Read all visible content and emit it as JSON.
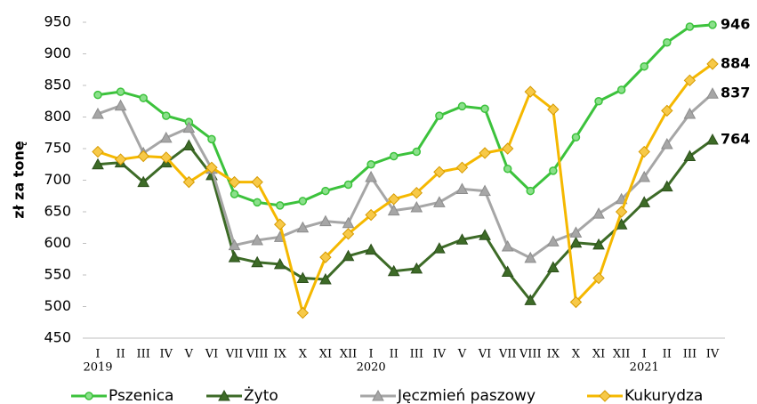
{
  "chart_data": {
    "type": "line",
    "y_label": "zł za tonę",
    "categories": [
      "I",
      "II",
      "III",
      "IV",
      "V",
      "VI",
      "VII",
      "VIII",
      "IX",
      "X",
      "XI",
      "XII",
      "I",
      "II",
      "III",
      "IV",
      "V",
      "VI",
      "VII",
      "VIII",
      "IX",
      "X",
      "XI",
      "XII",
      "I",
      "II",
      "III",
      "IV"
    ],
    "years": [
      "2019",
      "2020",
      "2021"
    ],
    "ylim": [
      450,
      950
    ],
    "yticks": [
      450,
      500,
      550,
      600,
      650,
      700,
      750,
      800,
      850,
      900,
      950
    ],
    "grid": false,
    "legend": "bottom",
    "series": [
      {
        "name": "Pszenica",
        "color": "#3cc23c",
        "label_color": "#22b14c",
        "marker": "circle",
        "values": [
          835,
          840,
          830,
          802,
          792,
          765,
          678,
          665,
          660,
          667,
          683,
          693,
          725,
          738,
          745,
          802,
          817,
          813,
          718,
          683,
          715,
          768,
          825,
          843,
          880,
          918,
          943,
          946
        ]
      },
      {
        "name": "Żyto",
        "color": "#3d6b27",
        "label_color": "#3d6b27",
        "marker": "triangle",
        "values": [
          725,
          728,
          697,
          728,
          755,
          708,
          578,
          570,
          567,
          545,
          543,
          580,
          590,
          556,
          560,
          592,
          606,
          613,
          555,
          510,
          562,
          601,
          598,
          630,
          665,
          690,
          738,
          764
        ]
      },
      {
        "name": "Jęczmień paszowy",
        "color": "#a6a6a6",
        "label_color": "#8c8c8c",
        "marker": "triangle",
        "values": [
          805,
          818,
          743,
          767,
          783,
          718,
          597,
          605,
          610,
          625,
          635,
          632,
          705,
          652,
          657,
          665,
          686,
          683,
          595,
          577,
          603,
          617,
          647,
          670,
          705,
          757,
          805,
          837
        ]
      },
      {
        "name": "Kukurydza",
        "color": "#f5b800",
        "label_color": "#d4a000",
        "marker": "diamond",
        "values": [
          745,
          733,
          738,
          736,
          697,
          720,
          697,
          697,
          630,
          490,
          578,
          615,
          645,
          670,
          680,
          713,
          720,
          743,
          750,
          840,
          812,
          507,
          545,
          650,
          745,
          810,
          858,
          884
        ]
      }
    ]
  }
}
